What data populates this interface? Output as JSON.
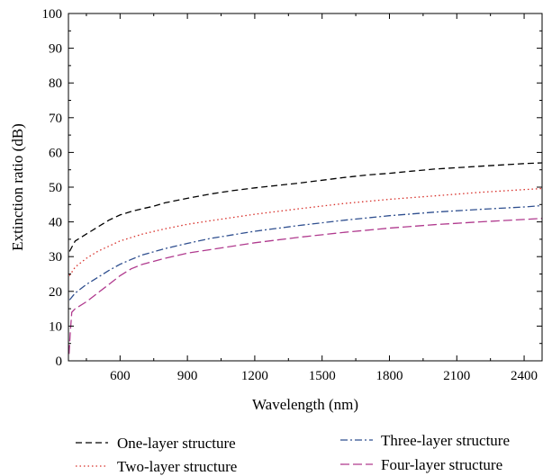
{
  "chart_data": {
    "type": "line",
    "title": "",
    "xlabel": "Wavelength (nm)",
    "ylabel": "Extinction ratio (dB)",
    "xlim": [
      370,
      2480
    ],
    "ylim": [
      0,
      100
    ],
    "xticks": [
      600,
      900,
      1200,
      1500,
      1800,
      2100,
      2400
    ],
    "yticks": [
      0,
      10,
      20,
      30,
      40,
      50,
      60,
      70,
      80,
      90,
      100
    ],
    "grid": false,
    "legend_position": "bottom",
    "series": [
      {
        "name": "One-layer structure",
        "color": "#000000",
        "dash": "dashed",
        "x": [
          375,
          400,
          450,
          500,
          550,
          600,
          650,
          700,
          750,
          800,
          900,
          1000,
          1100,
          1200,
          1300,
          1400,
          1500,
          1600,
          1700,
          1800,
          1900,
          2000,
          2100,
          2200,
          2300,
          2400,
          2480
        ],
        "y": [
          31.5,
          34.5,
          36.5,
          38.5,
          40.5,
          42,
          43,
          43.8,
          44.5,
          45.5,
          46.8,
          48,
          49,
          49.8,
          50.5,
          51.2,
          52,
          52.8,
          53.5,
          54,
          54.6,
          55.2,
          55.6,
          56,
          56.4,
          56.8,
          57
        ]
      },
      {
        "name": "Two-layer structure",
        "color": "#d8302a",
        "dash": "dotted",
        "x": [
          375,
          400,
          450,
          500,
          550,
          600,
          700,
          800,
          900,
          1000,
          1200,
          1400,
          1600,
          1800,
          2000,
          2200,
          2400,
          2480
        ],
        "y": [
          24.5,
          27,
          29.5,
          31.5,
          33,
          34.5,
          36.5,
          38,
          39.3,
          40.3,
          42.2,
          43.8,
          45.3,
          46.5,
          47.5,
          48.5,
          49.3,
          49.6
        ]
      },
      {
        "name": "Three-layer structure",
        "color": "#2f4f8f",
        "dash": "dashdot",
        "x": [
          375,
          400,
          450,
          500,
          550,
          600,
          650,
          700,
          800,
          900,
          1000,
          1200,
          1400,
          1600,
          1800,
          2000,
          2200,
          2400,
          2480
        ],
        "y": [
          17.5,
          19.5,
          22,
          24,
          26,
          27.8,
          29.2,
          30.5,
          32.3,
          33.8,
          35.2,
          37.3,
          39,
          40.5,
          41.8,
          42.8,
          43.6,
          44.3,
          44.7
        ]
      },
      {
        "name": "Four-layer structure",
        "color": "#b03a8e",
        "dash": "longdash",
        "x": [
          373,
          378,
          385,
          400,
          450,
          500,
          550,
          600,
          650,
          700,
          800,
          900,
          1000,
          1200,
          1400,
          1600,
          1800,
          2000,
          2200,
          2400,
          2480
        ],
        "y": [
          2,
          8,
          14,
          15,
          17,
          19.5,
          22,
          24.5,
          26.5,
          27.8,
          29.5,
          31,
          32,
          34,
          35.6,
          37,
          38.2,
          39.2,
          40,
          40.7,
          41
        ]
      }
    ]
  }
}
